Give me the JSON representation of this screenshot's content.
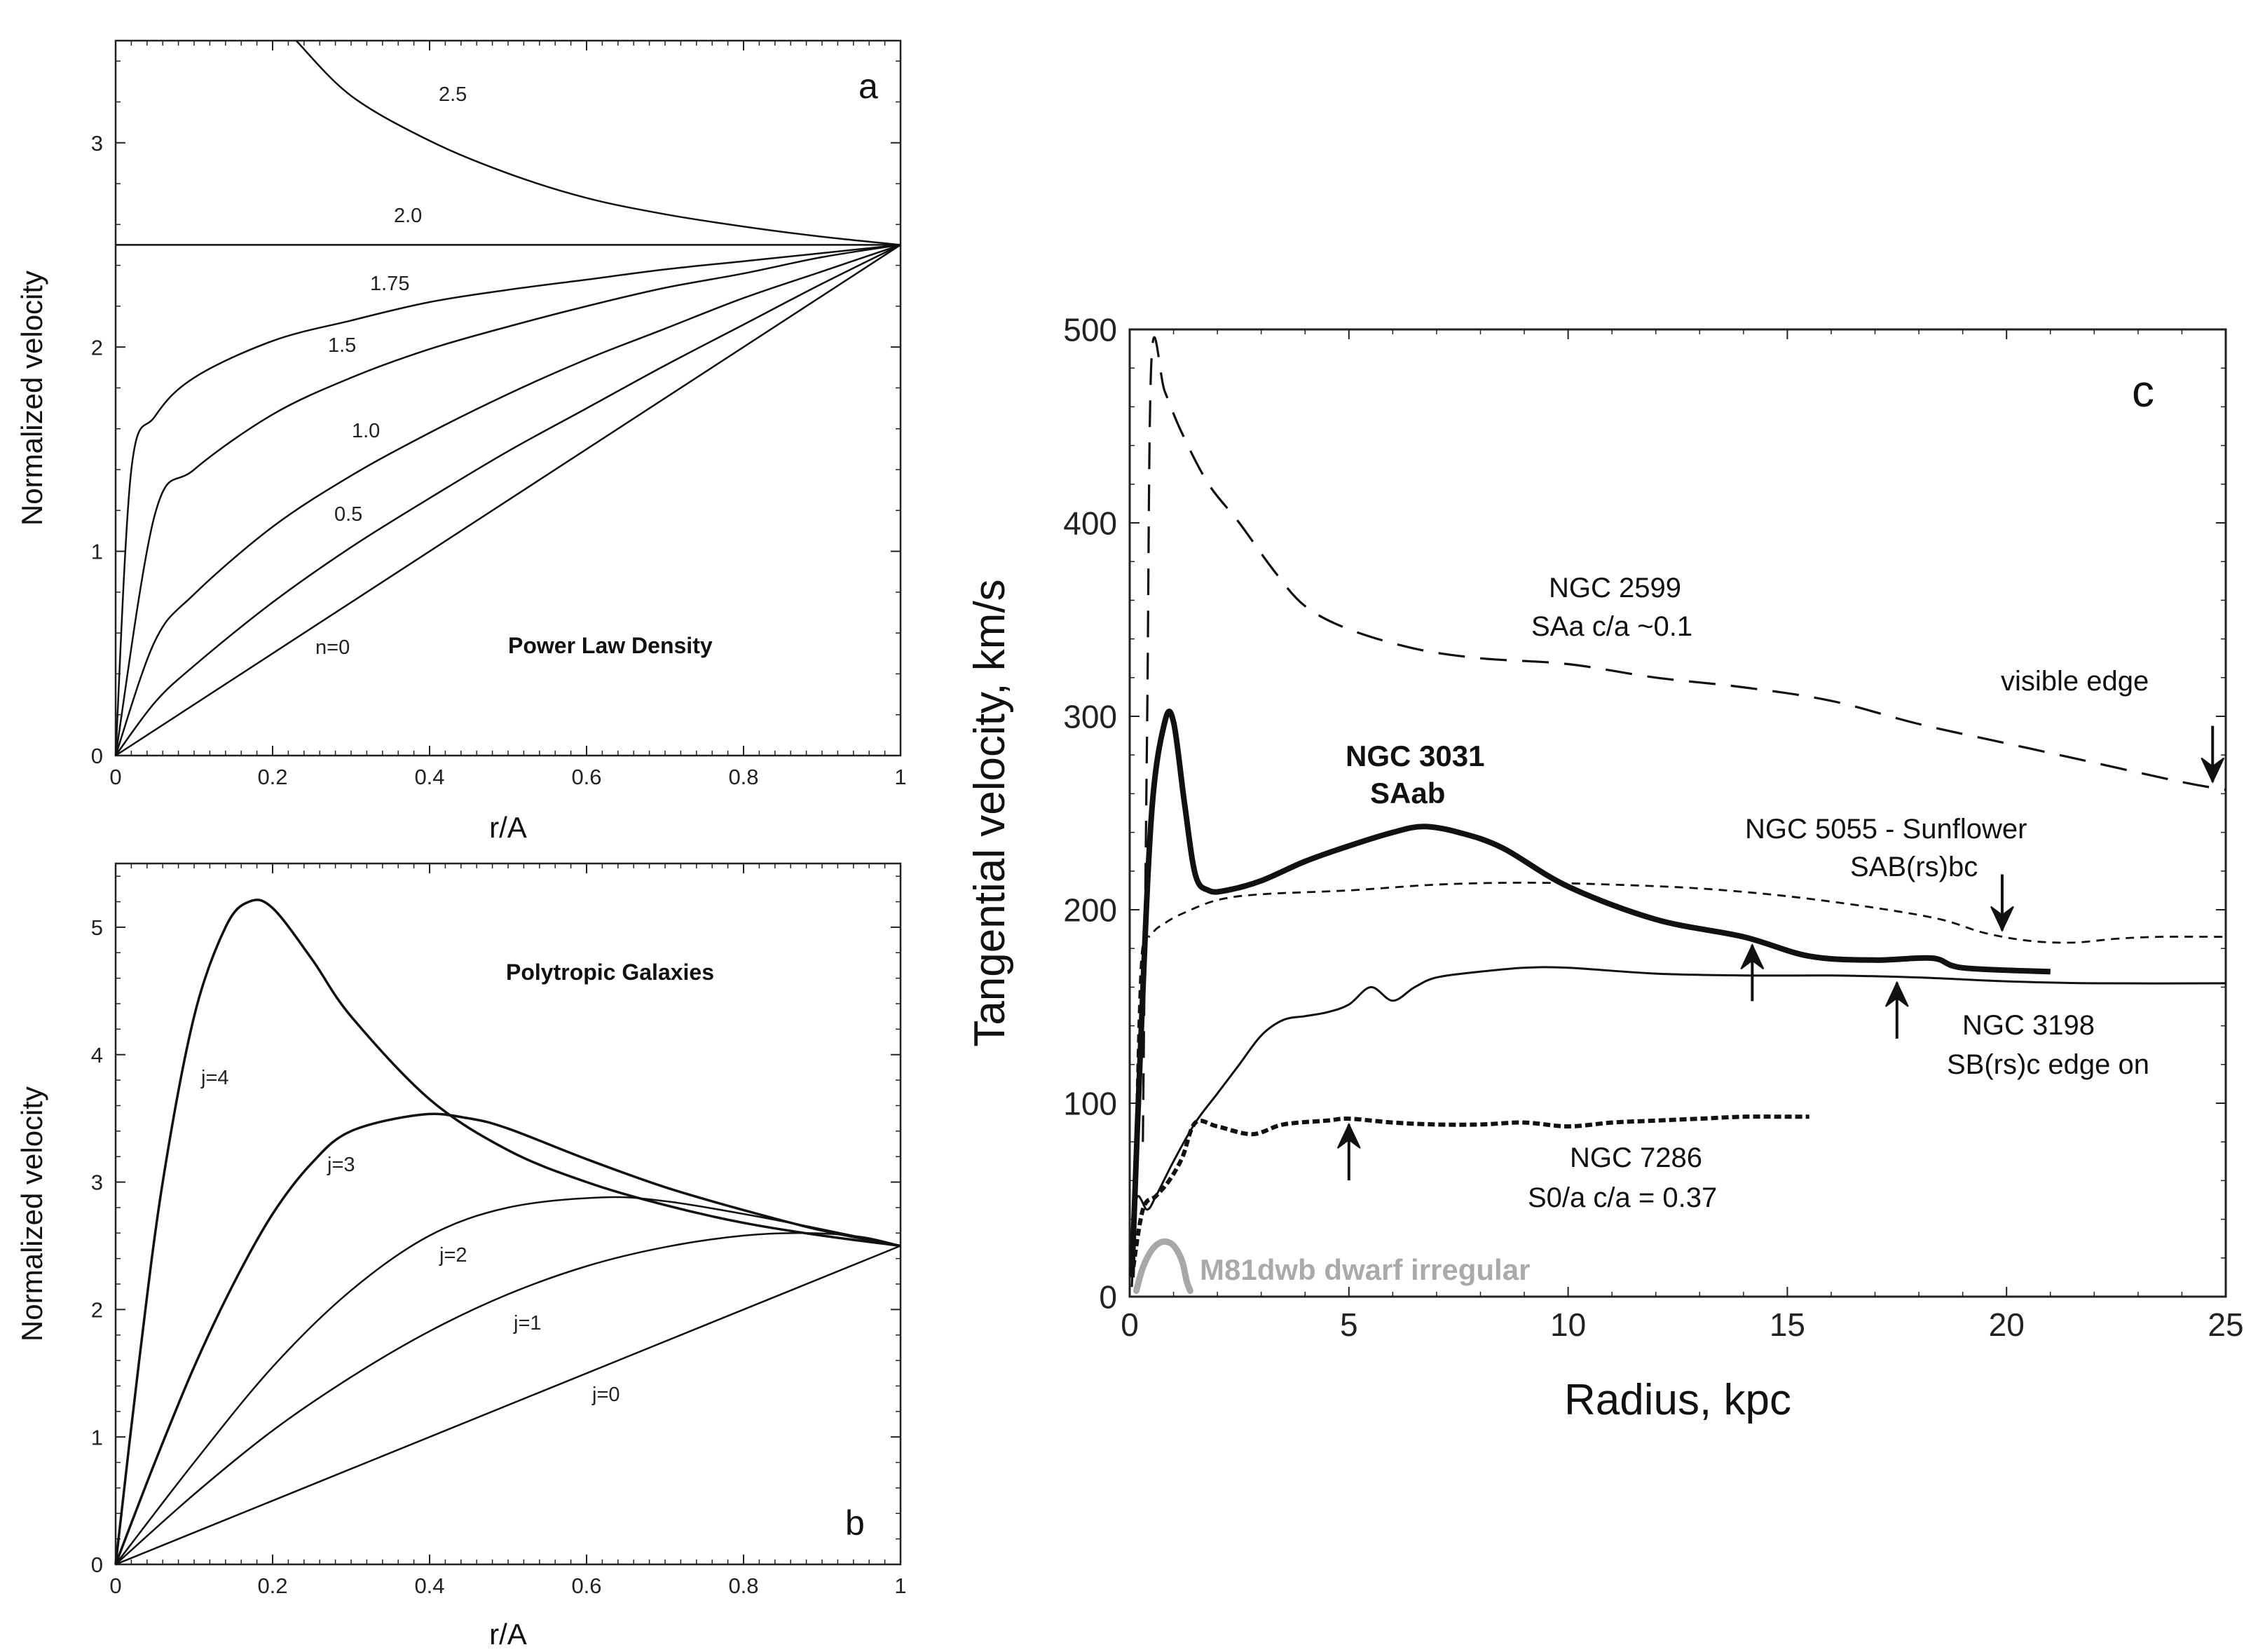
{
  "chart_data": [
    {
      "type": "line",
      "panel_letter": "a",
      "title": "Power Law Density",
      "xlabel": "r/A",
      "ylabel": "Normalized velocity",
      "xlim": [
        0,
        1
      ],
      "ylim": [
        0,
        3.5
      ],
      "xticks": [
        "0",
        "0.2",
        "0.4",
        "0.6",
        "0.8",
        "1"
      ],
      "yticks": [
        "0",
        "1",
        "2",
        "3"
      ],
      "series": [
        {
          "name": "2.5",
          "x": [
            0.23,
            0.3,
            0.4,
            0.5,
            0.6,
            0.7,
            0.8,
            0.9,
            1.0
          ],
          "y": [
            3.5,
            3.23,
            3.01,
            2.85,
            2.73,
            2.65,
            2.59,
            2.54,
            2.5
          ]
        },
        {
          "name": "2.0",
          "x": [
            0,
            1.0
          ],
          "y": [
            2.5,
            2.5
          ]
        },
        {
          "name": "1.75",
          "x": [
            0,
            0.02,
            0.05,
            0.1,
            0.2,
            0.3,
            0.4,
            0.5,
            0.6,
            0.7,
            0.8,
            0.9,
            1.0
          ],
          "y": [
            0,
            1.4,
            1.66,
            1.85,
            2.03,
            2.13,
            2.22,
            2.28,
            2.33,
            2.38,
            2.42,
            2.46,
            2.5
          ]
        },
        {
          "name": "1.5",
          "x": [
            0,
            0.05,
            0.1,
            0.2,
            0.3,
            0.4,
            0.5,
            0.6,
            0.7,
            0.8,
            0.9,
            1.0
          ],
          "y": [
            0,
            1.18,
            1.4,
            1.67,
            1.85,
            1.99,
            2.1,
            2.2,
            2.29,
            2.36,
            2.44,
            2.5
          ]
        },
        {
          "name": "1.0",
          "x": [
            0,
            0.05,
            0.1,
            0.2,
            0.3,
            0.4,
            0.5,
            0.6,
            0.7,
            0.8,
            0.9,
            1.0
          ],
          "y": [
            0,
            0.56,
            0.79,
            1.12,
            1.37,
            1.58,
            1.77,
            1.94,
            2.09,
            2.24,
            2.37,
            2.5
          ]
        },
        {
          "name": "0.5",
          "x": [
            0,
            0.05,
            0.1,
            0.2,
            0.3,
            0.4,
            0.5,
            0.6,
            0.7,
            0.8,
            0.9,
            1.0
          ],
          "y": [
            0,
            0.26,
            0.44,
            0.75,
            1.02,
            1.26,
            1.49,
            1.7,
            1.91,
            2.11,
            2.31,
            2.5
          ]
        },
        {
          "name": "n=0",
          "x": [
            0,
            1.0
          ],
          "y": [
            0,
            2.5
          ]
        }
      ]
    },
    {
      "type": "line",
      "panel_letter": "b",
      "title": "Polytropic Galaxies",
      "xlabel": "r/A",
      "ylabel": "Normalized velocity",
      "xlim": [
        0,
        1
      ],
      "ylim": [
        0,
        5.5
      ],
      "xticks": [
        "0",
        "0.2",
        "0.4",
        "0.6",
        "0.8",
        "1"
      ],
      "yticks": [
        "0",
        "1",
        "2",
        "3",
        "4",
        "5"
      ],
      "series": [
        {
          "name": "j=4",
          "x": [
            0,
            0.03,
            0.06,
            0.1,
            0.14,
            0.17,
            0.2,
            0.25,
            0.3,
            0.4,
            0.5,
            0.6,
            0.7,
            0.8,
            0.9,
            1.0
          ],
          "y": [
            0,
            1.6,
            3.0,
            4.3,
            5.0,
            5.2,
            5.15,
            4.75,
            4.3,
            3.65,
            3.25,
            3.0,
            2.82,
            2.68,
            2.58,
            2.5
          ]
        },
        {
          "name": "j=3",
          "x": [
            0,
            0.05,
            0.1,
            0.15,
            0.2,
            0.25,
            0.3,
            0.39,
            0.45,
            0.5,
            0.6,
            0.7,
            0.8,
            0.9,
            1.0
          ],
          "y": [
            0,
            0.8,
            1.55,
            2.2,
            2.75,
            3.15,
            3.4,
            3.53,
            3.5,
            3.42,
            3.18,
            2.96,
            2.78,
            2.62,
            2.5
          ]
        },
        {
          "name": "j=2",
          "x": [
            0,
            0.1,
            0.2,
            0.3,
            0.4,
            0.5,
            0.62,
            0.7,
            0.8,
            0.9,
            1.0
          ],
          "y": [
            0,
            0.8,
            1.55,
            2.15,
            2.58,
            2.8,
            2.88,
            2.85,
            2.75,
            2.63,
            2.5
          ]
        },
        {
          "name": "j=1",
          "x": [
            0,
            0.1,
            0.2,
            0.3,
            0.4,
            0.5,
            0.6,
            0.7,
            0.8,
            0.88,
            0.95,
            1.0
          ],
          "y": [
            0,
            0.55,
            1.05,
            1.47,
            1.83,
            2.12,
            2.34,
            2.49,
            2.58,
            2.6,
            2.57,
            2.5
          ]
        },
        {
          "name": "j=0",
          "x": [
            0,
            1.0
          ],
          "y": [
            0,
            2.5
          ]
        }
      ]
    },
    {
      "type": "line",
      "panel_letter": "c",
      "xlabel": "Radius, kpc",
      "ylabel": "Tangential velocity, km/s",
      "xlim": [
        0,
        25
      ],
      "ylim": [
        0,
        500
      ],
      "xticks": [
        "0",
        "5",
        "10",
        "15",
        "20",
        "25"
      ],
      "yticks": [
        "0",
        "100",
        "200",
        "300",
        "400",
        "500"
      ],
      "series": [
        {
          "name": "NGC 2599",
          "label_lines": [
            "NGC 2599",
            "SAa  c/a ~0.1"
          ],
          "style": "long-dash",
          "x": [
            0.3,
            0.4,
            0.5,
            0.8,
            1.2,
            1.8,
            2.5,
            3.3,
            4.0,
            5.0,
            6.5,
            8.0,
            10.0,
            12.0,
            14.0,
            16.0,
            18.0,
            20.0,
            22.0,
            24.0,
            25.0
          ],
          "y": [
            80,
            300,
            486,
            468,
            446,
            420,
            400,
            375,
            357,
            345,
            335,
            330,
            327,
            320,
            315,
            308,
            296,
            286,
            276,
            266,
            262
          ]
        },
        {
          "name": "NGC 3031",
          "label_lines": [
            "NGC 3031",
            "SAab"
          ],
          "style": "thick-solid",
          "x": [
            0.05,
            0.25,
            0.5,
            0.8,
            1.0,
            1.25,
            1.5,
            1.8,
            2.2,
            3.0,
            4.0,
            5.0,
            6.0,
            6.7,
            7.5,
            8.5,
            10.0,
            12.0,
            14.0,
            15.5,
            17.0,
            18.3,
            19.0,
            21.0
          ],
          "y": [
            10,
            130,
            250,
            297,
            297,
            255,
            218,
            210,
            210,
            215,
            225,
            233,
            240,
            243,
            240,
            232,
            212,
            195,
            186,
            176,
            174,
            175,
            170,
            168
          ]
        },
        {
          "name": "NGC 5055",
          "label_lines": [
            "NGC 5055 - Sunflower",
            "SAB(rs)bc"
          ],
          "style": "short-dash",
          "x": [
            0.1,
            0.25,
            0.5,
            0.8,
            1.2,
            2.0,
            3.0,
            5.0,
            7.0,
            9.0,
            11.0,
            13.0,
            15.0,
            17.0,
            18.5,
            19.5,
            20.5,
            21.5,
            22.5,
            23.5,
            25.0
          ],
          "y": [
            40,
            170,
            187,
            193,
            198,
            205,
            208,
            210,
            213,
            214,
            213,
            211,
            207,
            201,
            195,
            188,
            184,
            183,
            185,
            186,
            186
          ]
        },
        {
          "name": "NGC 3198",
          "label_lines": [
            "NGC 3198",
            "SB(rs)c edge on"
          ],
          "style": "solid",
          "x": [
            0.05,
            0.15,
            0.4,
            0.6,
            1.0,
            1.5,
            2.0,
            2.5,
            3.0,
            3.5,
            4.0,
            4.5,
            5.0,
            5.5,
            6.0,
            6.5,
            7.0,
            8.0,
            9.0,
            10.0,
            12.0,
            14.0,
            16.0,
            18.0,
            20.0,
            22.0,
            25.0
          ],
          "y": [
            5,
            50,
            45,
            52,
            70,
            90,
            105,
            120,
            135,
            143,
            145,
            147,
            151,
            160,
            153,
            160,
            165,
            168,
            170,
            170,
            167,
            166,
            166,
            165,
            163,
            162,
            162
          ]
        },
        {
          "name": "NGC 7286",
          "label_lines": [
            "NGC 7286",
            "S0/a   c/a = 0.37"
          ],
          "style": "dotted-thick",
          "x": [
            0.05,
            0.3,
            0.6,
            0.9,
            1.2,
            1.5,
            2.0,
            2.8,
            3.5,
            4.5,
            5.0,
            6.0,
            7.0,
            8.0,
            9.0,
            10.0,
            11.0,
            12.0,
            13.0,
            14.0,
            15.0,
            15.5
          ],
          "y": [
            10,
            45,
            52,
            60,
            72,
            90,
            88,
            84,
            89,
            91,
            92,
            90,
            89,
            89,
            90,
            88,
            90,
            91,
            92,
            93,
            93,
            93
          ]
        },
        {
          "name": "M81dwb",
          "label_lines": [
            "M81dwb  dwarf irregular"
          ],
          "style": "gray-thick",
          "x": [
            0.15,
            0.3,
            0.5,
            0.7,
            0.9,
            1.05,
            1.2,
            1.3,
            1.38
          ],
          "y": [
            3,
            15,
            24,
            28,
            28,
            25,
            18,
            8,
            3
          ]
        }
      ],
      "annotations": {
        "visible_edge_label": "visible edge",
        "arrows": [
          {
            "series": "NGC 2599",
            "x": 24.7,
            "direction": "down"
          },
          {
            "series": "NGC 5055",
            "x": 19.9,
            "direction": "down"
          },
          {
            "series": "NGC 3031",
            "x": 14.2,
            "direction": "up"
          },
          {
            "series": "NGC 3198",
            "x": 17.5,
            "direction": "up"
          },
          {
            "series": "NGC 7286",
            "x": 5.0,
            "direction": "up"
          }
        ]
      }
    }
  ]
}
